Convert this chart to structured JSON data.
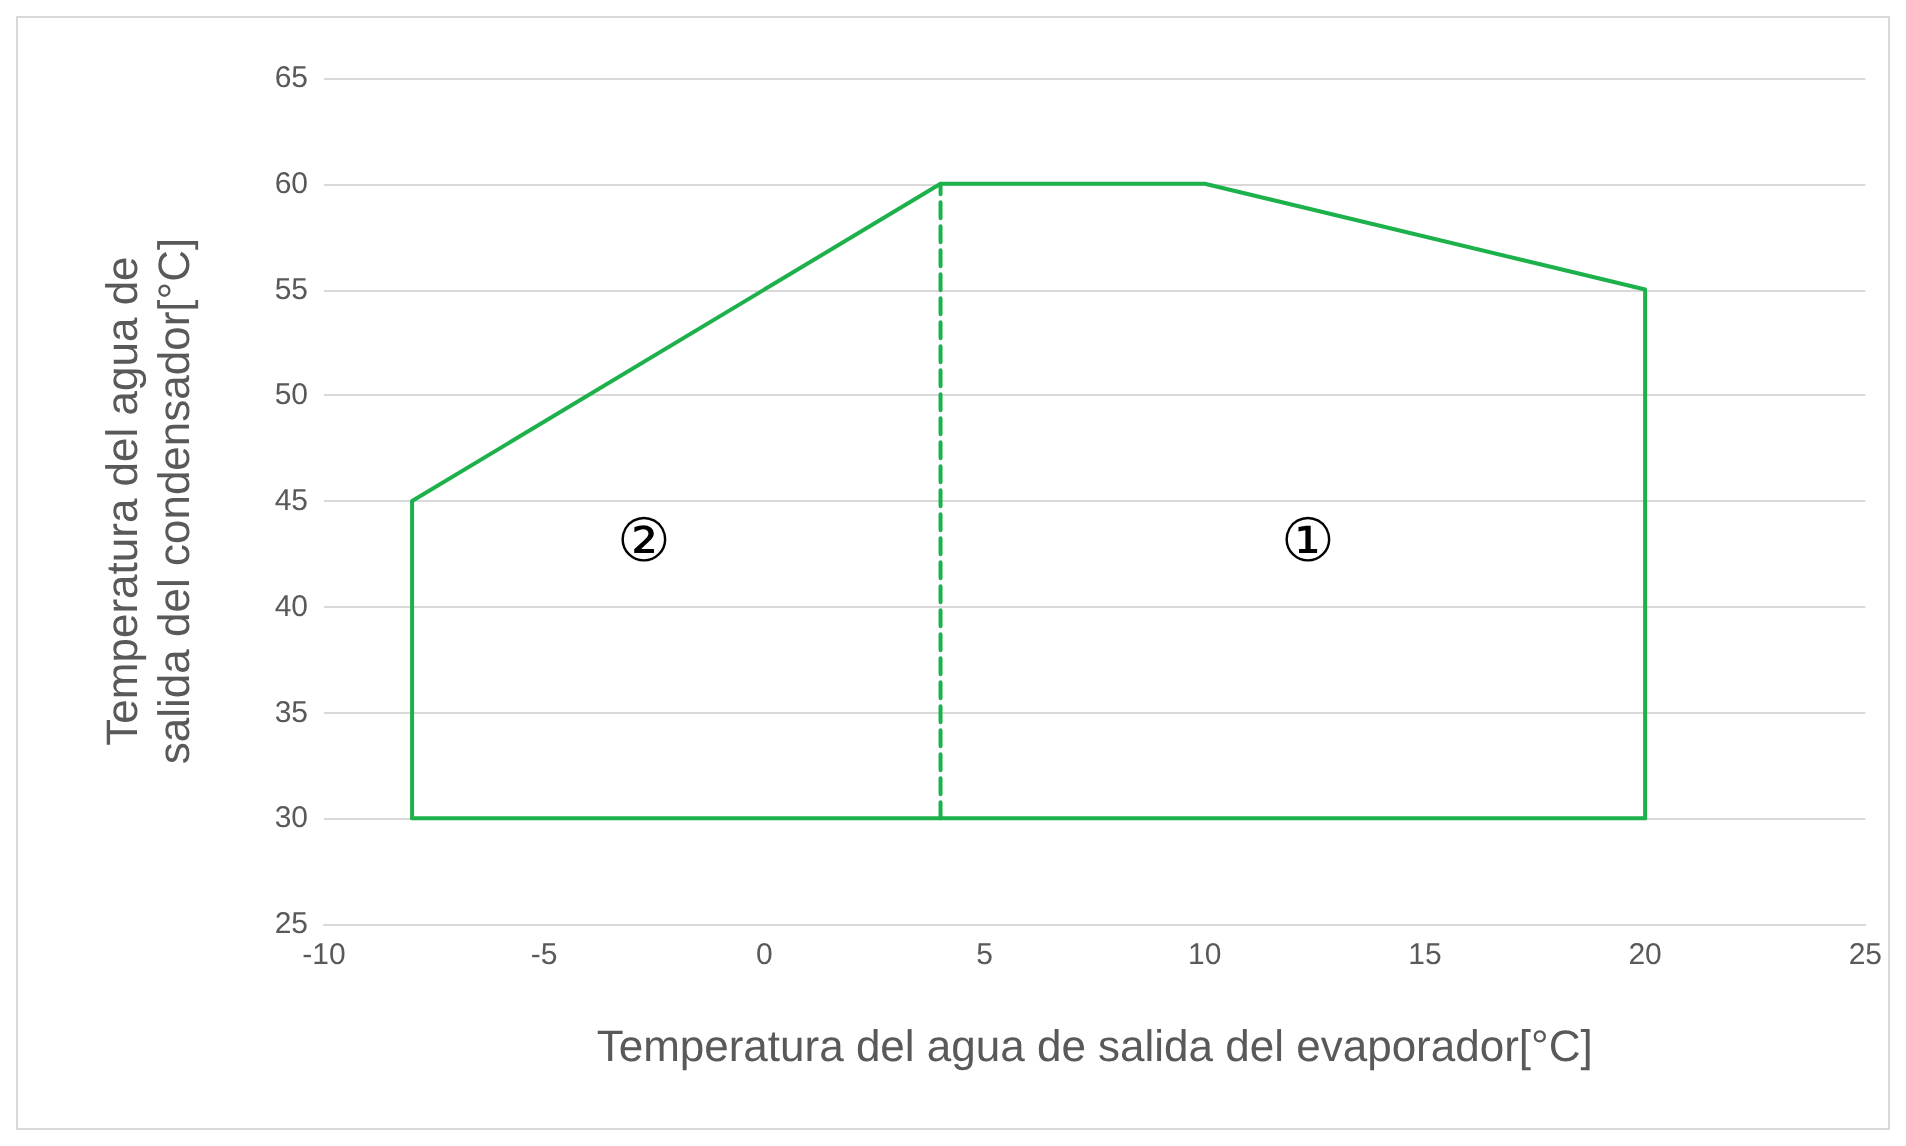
{
  "chart_data": {
    "type": "line",
    "xlabel": "Temperatura del agua de salida del evaporador[°C]",
    "ylabel": "Temperatura del agua de salida del condensador[°C]",
    "series": [
      {
        "color": "#1db14b",
        "line_style": "dashed",
        "x": [
          4,
          4
        ],
        "values": [
          30,
          60
        ]
      },
      {
        "color": "#1db14b",
        "line_style": "solid",
        "x": [
          -8,
          -8,
          4,
          10,
          20,
          20
        ],
        "values": [
          30,
          45,
          60,
          60,
          55,
          30
        ]
      },
      {
        "color": "#1db14b",
        "line_style": "solid",
        "x": [
          -8,
          20
        ],
        "values": [
          30,
          30
        ]
      }
    ],
    "annotations": [
      "②",
      "①"
    ],
    "xlim": [
      -10,
      25
    ],
    "xticks": [
      -10,
      -5,
      0,
      5,
      10,
      15,
      20,
      25
    ],
    "ylim": [
      25,
      65
    ],
    "yticks": [
      25,
      30,
      35,
      40,
      45,
      50,
      55,
      60,
      65
    ],
    "grid": "y",
    "marker": "none"
  }
}
